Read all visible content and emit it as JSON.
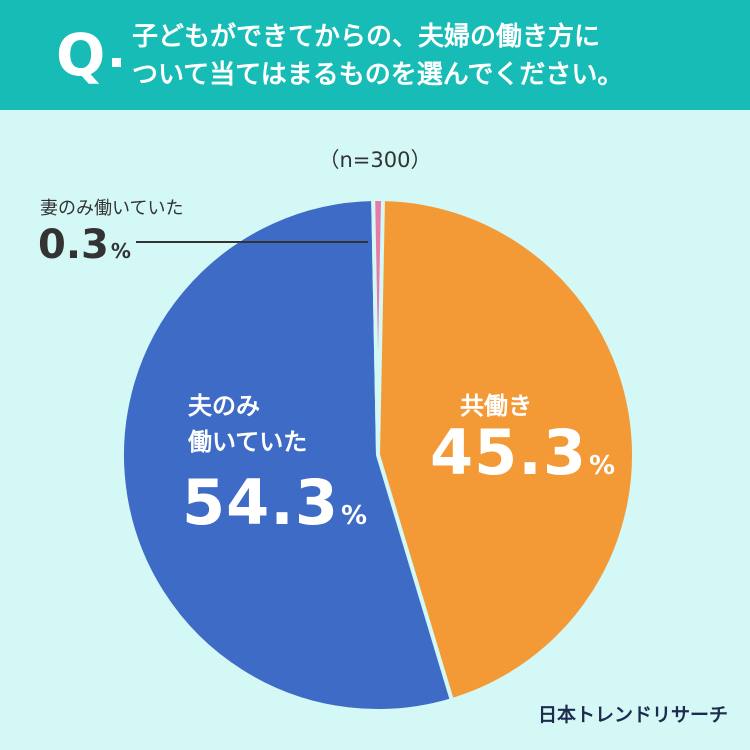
{
  "question": {
    "mark": "Q",
    "line1": "子どもができてからの、夫婦の働き方に",
    "line2": "ついて当てはまるものを選んでください。"
  },
  "sample_size": "（n=300）",
  "brand": "日本トレンドリサーチ",
  "colors": {
    "header": "#16bcb5",
    "background": "#d3f8f6",
    "both": "#f39a37",
    "husband_only": "#3d6bc6",
    "wife_only": "#e87aa8"
  },
  "chart_data": {
    "type": "pie",
    "title": "",
    "slices": [
      {
        "label": "共働き",
        "value": 45.3,
        "color": "#f39a37"
      },
      {
        "label": "夫のみ働いていた",
        "value": 54.3,
        "color": "#3d6bc6"
      },
      {
        "label": "妻のみ働いていた",
        "value": 0.3,
        "color": "#e87aa8"
      }
    ],
    "labels": {
      "both": {
        "name": "共働き",
        "value": "45.3",
        "unit": "%"
      },
      "husband": {
        "name_line1": "夫のみ",
        "name_line2": "働いていた",
        "value": "54.3",
        "unit": "%"
      },
      "wife": {
        "name": "妻のみ働いていた",
        "value": "0.3",
        "unit": "%"
      }
    }
  }
}
